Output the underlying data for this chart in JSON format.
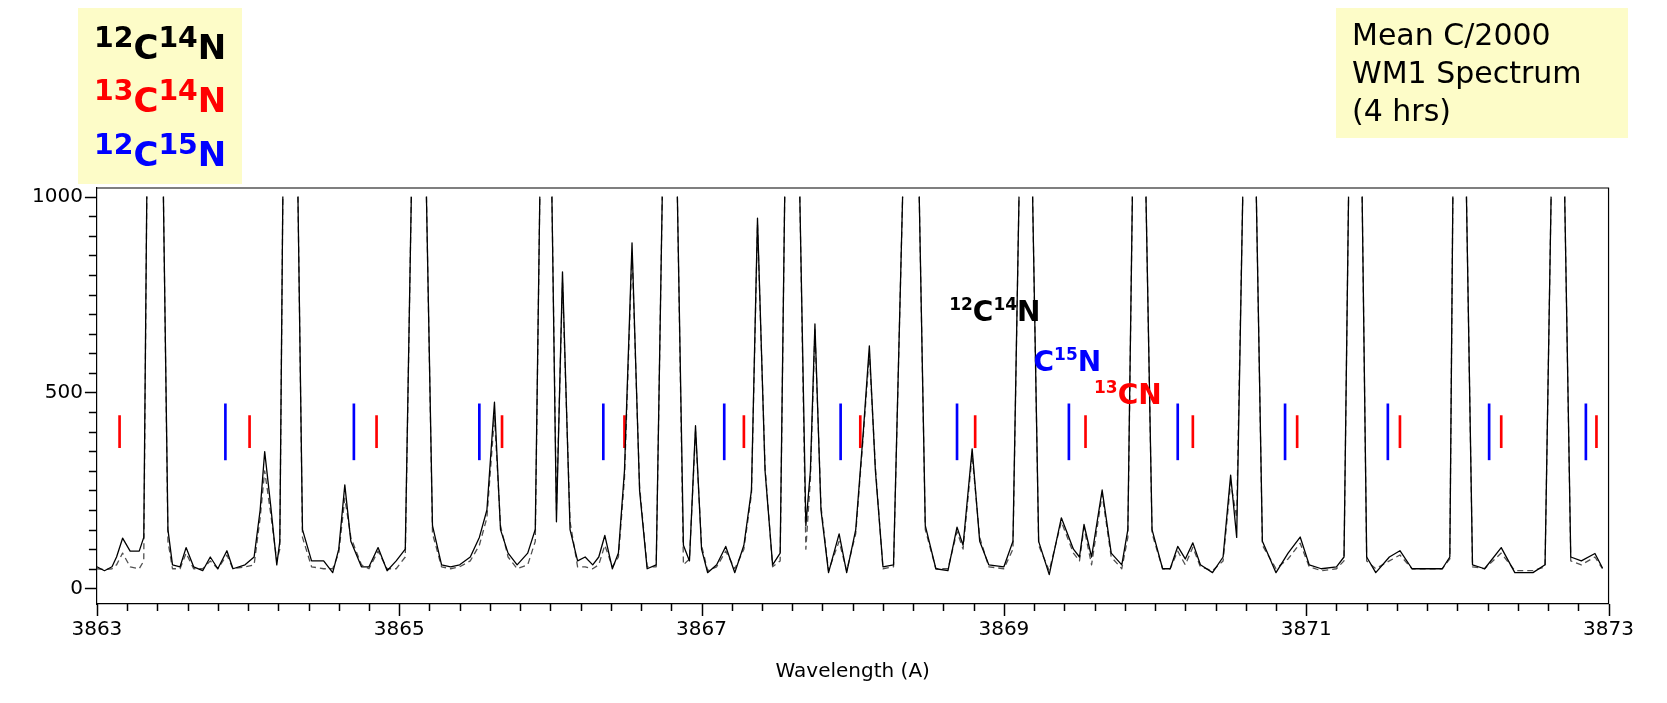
{
  "chart_data": {
    "type": "line",
    "title": "Mean C/2000 WM1 Spectrum (4 hrs)",
    "xlabel": "Wavelength (A)",
    "legend": "top left",
    "marker": "none",
    "grid": false,
    "xlim": [
      3863,
      3873
    ],
    "ylim": [
      -40,
      1022
    ],
    "xticks": [
      3863,
      {
        "value": 3863.2,
        "label": null
      },
      {
        "value": 3863.4,
        "label": null
      },
      {
        "value": 3863.6,
        "label": null
      },
      {
        "value": 3863.8,
        "label": null
      },
      {
        "value": 3864,
        "label": null
      },
      {
        "value": 3864.2,
        "label": null
      },
      {
        "value": 3864.4,
        "label": null
      },
      {
        "value": 3864.6,
        "label": null
      },
      {
        "value": 3864.8,
        "label": null
      },
      3865,
      {
        "value": 3865.2,
        "label": null
      },
      {
        "value": 3865.4,
        "label": null
      },
      {
        "value": 3865.6,
        "label": null
      },
      {
        "value": 3865.8,
        "label": null
      },
      {
        "value": 3866,
        "label": null
      },
      {
        "value": 3866.2,
        "label": null
      },
      {
        "value": 3866.4,
        "label": null
      },
      {
        "value": 3866.6,
        "label": null
      },
      {
        "value": 3866.8,
        "label": null
      },
      3867,
      {
        "value": 3867.2,
        "label": null
      },
      {
        "value": 3867.4,
        "label": null
      },
      {
        "value": 3867.6,
        "label": null
      },
      {
        "value": 3867.8,
        "label": null
      },
      {
        "value": 3868,
        "label": null
      },
      {
        "value": 3868.2,
        "label": null
      },
      {
        "value": 3868.4,
        "label": null
      },
      {
        "value": 3868.6,
        "label": null
      },
      {
        "value": 3868.8,
        "label": null
      },
      3869,
      {
        "value": 3869.2,
        "label": null
      },
      {
        "value": 3869.4,
        "label": null
      },
      {
        "value": 3869.6,
        "label": null
      },
      {
        "value": 3869.8,
        "label": null
      },
      {
        "value": 3870,
        "label": null
      },
      {
        "value": 3870.2,
        "label": null
      },
      {
        "value": 3870.4,
        "label": null
      },
      {
        "value": 3870.6,
        "label": null
      },
      {
        "value": 3870.8,
        "label": null
      },
      3871,
      {
        "value": 3871.2,
        "label": null
      },
      {
        "value": 3871.4,
        "label": null
      },
      {
        "value": 3871.6,
        "label": null
      },
      {
        "value": 3871.8,
        "label": null
      },
      {
        "value": 3872,
        "label": null
      },
      {
        "value": 3872.2,
        "label": null
      },
      {
        "value": 3872.4,
        "label": null
      },
      {
        "value": 3872.6,
        "label": null
      },
      {
        "value": 3872.8,
        "label": null
      },
      3873
    ],
    "yticks": [
      0,
      {
        "value": 50,
        "label": null
      },
      {
        "value": 100,
        "label": null
      },
      {
        "value": 150,
        "label": null
      },
      {
        "value": 200,
        "label": null
      },
      {
        "value": 250,
        "label": null
      },
      {
        "value": 300,
        "label": null
      },
      {
        "value": 350,
        "label": null
      },
      {
        "value": 400,
        "label": null
      },
      {
        "value": 450,
        "label": null
      },
      500,
      {
        "value": 550,
        "label": null
      },
      {
        "value": 600,
        "label": null
      },
      {
        "value": 650,
        "label": null
      },
      {
        "value": 700,
        "label": null
      },
      {
        "value": 750,
        "label": null
      },
      {
        "value": 800,
        "label": null
      },
      {
        "value": 850,
        "label": null
      },
      {
        "value": 900,
        "label": null
      },
      {
        "value": 950,
        "label": null
      },
      1000
    ],
    "annotations": [
      "$^{12}$C$^{14}$N",
      "C$^{15}$N",
      "$^{13}$CN"
    ],
    "x": [
      3863.0,
      3863.05,
      3863.1,
      3863.13,
      3863.17,
      3863.22,
      3863.28,
      3863.31,
      3863.33,
      3863.38,
      3863.44,
      3863.47,
      3863.5,
      3863.55,
      3863.59,
      3863.64,
      3863.7,
      3863.75,
      3863.8,
      3863.86,
      3863.9,
      3863.98,
      3864.04,
      3864.08,
      3864.11,
      3864.15,
      3864.19,
      3864.21,
      3864.23,
      3864.28,
      3864.33,
      3864.36,
      3864.42,
      3864.5,
      3864.56,
      3864.6,
      3864.64,
      3864.68,
      3864.75,
      3864.8,
      3864.86,
      3864.92,
      3864.98,
      3865.04,
      3865.08,
      3865.13,
      3865.18,
      3865.22,
      3865.28,
      3865.34,
      3865.4,
      3865.47,
      3865.53,
      3865.58,
      3865.63,
      3865.67,
      3865.72,
      3865.78,
      3865.85,
      3865.9,
      3865.93,
      3865.97,
      3866.01,
      3866.04,
      3866.08,
      3866.13,
      3866.18,
      3866.23,
      3866.28,
      3866.32,
      3866.36,
      3866.41,
      3866.45,
      3866.49,
      3866.54,
      3866.59,
      3866.64,
      3866.7,
      3866.74,
      3866.79,
      3866.84,
      3866.88,
      3866.92,
      3866.96,
      3867.0,
      3867.04,
      3867.1,
      3867.16,
      3867.22,
      3867.28,
      3867.33,
      3867.37,
      3867.42,
      3867.47,
      3867.52,
      3867.55,
      3867.6,
      3867.65,
      3867.69,
      3867.72,
      3867.75,
      3867.79,
      3867.84,
      3867.91,
      3867.96,
      3868.02,
      3868.07,
      3868.11,
      3868.15,
      3868.2,
      3868.27,
      3868.33,
      3868.38,
      3868.44,
      3868.48,
      3868.55,
      3868.63,
      3868.69,
      3868.73,
      3868.79,
      3868.84,
      3868.9,
      3869.0,
      3869.06,
      3869.1,
      3869.15,
      3869.19,
      3869.23,
      3869.3,
      3869.38,
      3869.46,
      3869.5,
      3869.53,
      3869.58,
      3869.65,
      3869.71,
      3869.78,
      3869.82,
      3869.85,
      3869.9,
      3869.94,
      3869.98,
      3870.05,
      3870.1,
      3870.15,
      3870.2,
      3870.25,
      3870.3,
      3870.38,
      3870.45,
      3870.5,
      3870.54,
      3870.58,
      3870.62,
      3870.67,
      3870.71,
      3870.8,
      3870.88,
      3870.96,
      3871.02,
      3871.1,
      3871.2,
      3871.25,
      3871.28,
      3871.32,
      3871.37,
      3871.4,
      3871.46,
      3871.55,
      3871.62,
      3871.7,
      3871.8,
      3871.9,
      3871.95,
      3871.97,
      3872.02,
      3872.06,
      3872.1,
      3872.18,
      3872.29,
      3872.38,
      3872.5,
      3872.58,
      3872.62,
      3872.66,
      3872.71,
      3872.75,
      3872.82,
      3872.91,
      3872.96
    ],
    "series": [
      {
        "name": "$^{12}$C$^{14}$N",
        "color": "#000000",
        "line_style": "solid",
        "values": [
          55,
          45,
          55,
          80,
          128,
          95,
          95,
          130,
          1000,
          null,
          1000,
          150,
          60,
          55,
          104,
          55,
          45,
          80,
          50,
          96,
          50,
          60,
          80,
          200,
          349,
          210,
          60,
          120,
          1000,
          null,
          1000,
          150,
          70,
          70,
          40,
          100,
          264,
          120,
          55,
          55,
          104,
          45,
          70,
          100,
          1000,
          null,
          1000,
          160,
          60,
          55,
          60,
          80,
          130,
          200,
          475,
          150,
          90,
          60,
          90,
          150,
          1000,
          null,
          1000,
          170,
          808,
          150,
          70,
          80,
          60,
          80,
          135,
          50,
          90,
          300,
          882,
          250,
          50,
          60,
          1000,
          null,
          1000,
          110,
          70,
          415,
          100,
          40,
          60,
          107,
          40,
          110,
          250,
          945,
          300,
          60,
          90,
          1000,
          null,
          1000,
          160,
          300,
          675,
          200,
          40,
          139,
          40,
          150,
          400,
          619,
          300,
          55,
          60,
          1000,
          null,
          1000,
          160,
          50,
          45,
          156,
          110,
          356,
          120,
          60,
          55,
          120,
          1000,
          null,
          1000,
          120,
          35,
          180,
          100,
          80,
          163,
          80,
          251,
          90,
          60,
          150,
          1000,
          null,
          1000,
          150,
          50,
          50,
          107,
          75,
          116,
          60,
          40,
          80,
          289,
          130,
          1000,
          null,
          1000,
          120,
          40,
          90,
          131,
          60,
          50,
          55,
          80,
          1000,
          null,
          1000,
          80,
          40,
          80,
          96,
          50,
          50,
          50,
          80,
          1000,
          null,
          1000,
          60,
          50,
          104,
          40,
          40,
          60,
          1000,
          null,
          1000,
          80,
          70,
          89,
          52
        ]
      },
      {
        "color": "#505050",
        "line_style": "dashed",
        "values": [
          50,
          48,
          50,
          60,
          90,
          55,
          50,
          70,
          1000,
          null,
          1000,
          120,
          50,
          50,
          90,
          50,
          50,
          70,
          50,
          85,
          50,
          55,
          60,
          180,
          300,
          190,
          70,
          100,
          1000,
          null,
          1000,
          130,
          55,
          50,
          50,
          90,
          230,
          130,
          60,
          50,
          95,
          50,
          50,
          80,
          1000,
          null,
          1000,
          140,
          55,
          50,
          55,
          70,
          110,
          180,
          440,
          160,
          80,
          50,
          60,
          120,
          1000,
          null,
          1000,
          200,
          780,
          170,
          55,
          55,
          50,
          60,
          110,
          55,
          80,
          280,
          860,
          260,
          55,
          55,
          1000,
          null,
          1000,
          60,
          75,
          400,
          110,
          45,
          55,
          95,
          50,
          100,
          240,
          930,
          310,
          55,
          70,
          1000,
          null,
          1000,
          100,
          280,
          660,
          210,
          45,
          120,
          45,
          140,
          390,
          600,
          310,
          50,
          55,
          1000,
          null,
          1000,
          150,
          50,
          50,
          145,
          100,
          340,
          130,
          55,
          50,
          100,
          1000,
          null,
          1000,
          110,
          45,
          170,
          90,
          70,
          155,
          60,
          240,
          80,
          50,
          130,
          1000,
          null,
          1000,
          140,
          50,
          50,
          95,
          60,
          105,
          55,
          45,
          70,
          270,
          180,
          1000,
          null,
          1000,
          110,
          50,
          75,
          115,
          55,
          45,
          50,
          70,
          1000,
          null,
          1000,
          70,
          50,
          70,
          85,
          50,
          50,
          50,
          75,
          1000,
          null,
          1000,
          55,
          50,
          90,
          45,
          45,
          55,
          1000,
          null,
          1000,
          70,
          60,
          80,
          50
        ]
      },
      {
        "name": "$^{13}$C$^{14}$N",
        "color": "#ff0000",
        "type": "bar",
        "x": [
          3863.15,
          3864.01,
          3864.85,
          3865.68,
          3866.49,
          3867.28,
          3868.05,
          3868.81,
          3869.54,
          3870.25,
          3870.94,
          3871.62,
          3872.29,
          3872.92
        ],
        "base": [
          359,
          359,
          359,
          359,
          359,
          359,
          359,
          359,
          359,
          359,
          359,
          359,
          359,
          359
        ],
        "values": [
          82,
          82,
          82,
          82,
          82,
          82,
          82,
          82,
          82,
          82,
          82,
          82,
          82,
          82
        ]
      },
      {
        "name": "$^{12}$C$^{15}$N",
        "color": "#0000ff",
        "type": "bar",
        "x": [
          3863.85,
          3864.7,
          3865.53,
          3866.35,
          3867.15,
          3867.92,
          3868.69,
          3869.43,
          3870.15,
          3870.86,
          3871.54,
          3872.21,
          3872.85
        ],
        "base": [
          328,
          328,
          328,
          328,
          328,
          328,
          328,
          328,
          328,
          328,
          328,
          328,
          328
        ],
        "values": [
          143,
          143,
          143,
          143,
          143,
          143,
          143,
          143,
          143,
          143,
          143,
          143,
          143
        ]
      }
    ]
  }
}
